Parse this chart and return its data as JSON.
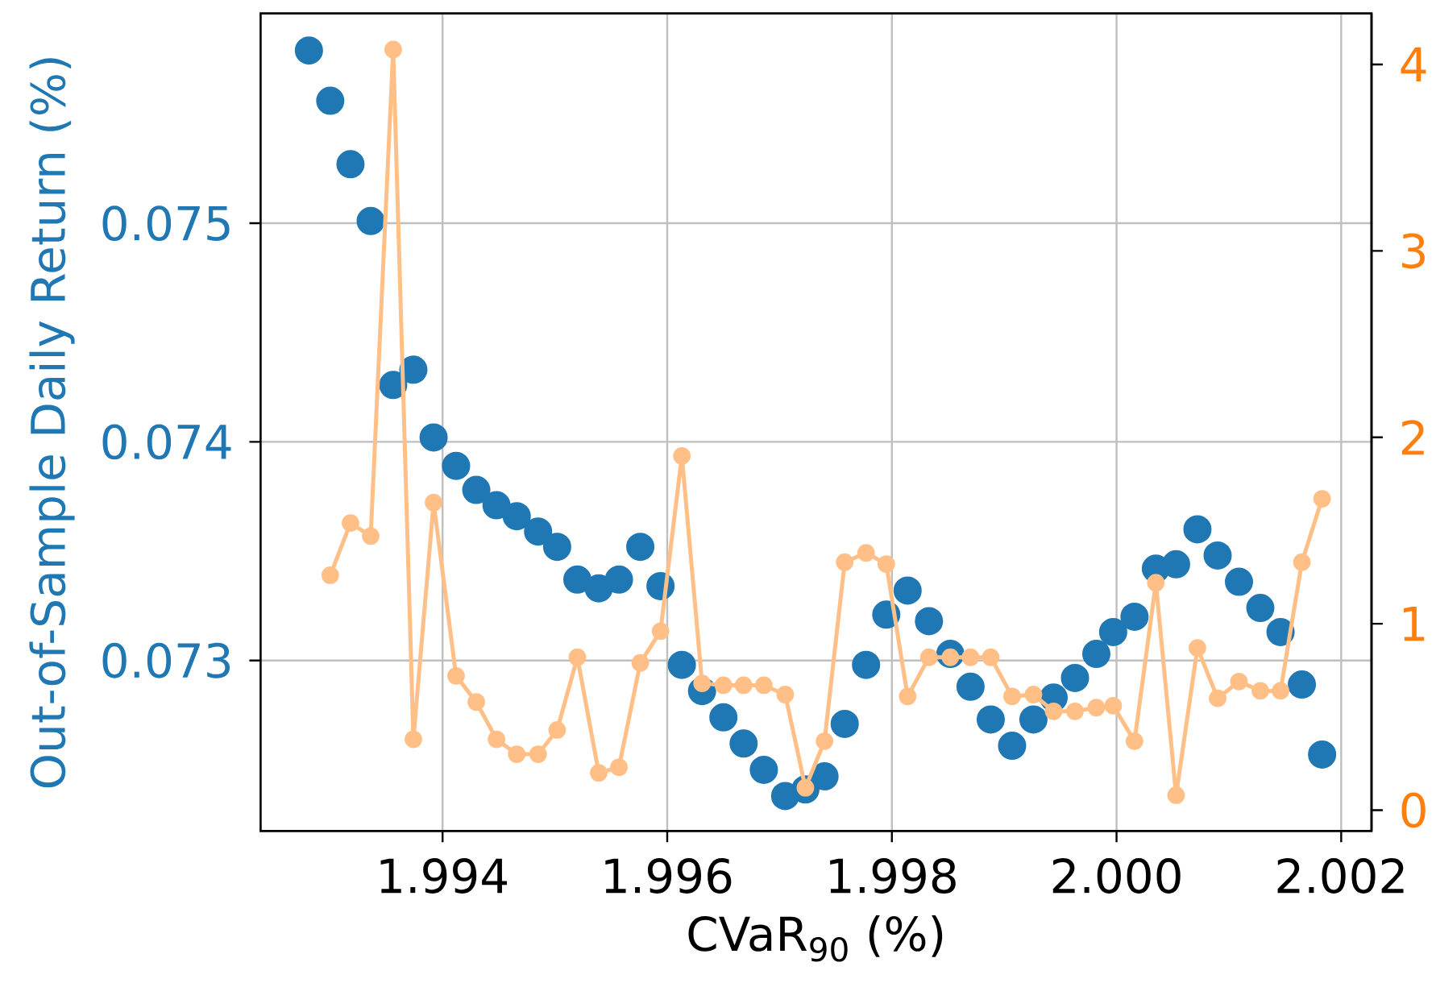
{
  "chart_data": {
    "type": "scatter",
    "xlabel": "CVaR$_{90}$ (%)",
    "ylabel": "Out-of-Sample Daily Return (%)",
    "xlim": [
      1.99238,
      2.00227
    ],
    "ylim": [
      0.07222,
      0.07596
    ],
    "y2lim": [
      -0.112,
      4.274
    ],
    "xticks": [
      1.994,
      1.996,
      1.998,
      {
        "value": 2.0,
        "label": "2.000"
      },
      2.002
    ],
    "yticks": [
      0.073,
      0.074,
      0.075
    ],
    "y2ticks": [
      0,
      1,
      2,
      3,
      4
    ],
    "grid": true,
    "marker": "circle",
    "series": [
      {
        "color": "#1f77b4",
        "x": [
          1.99281,
          1.993,
          1.99318,
          1.99336,
          1.99356,
          1.99374,
          1.99392,
          1.99412,
          1.9943,
          1.99448,
          1.99466,
          1.99485,
          1.99502,
          1.9952,
          1.99539,
          1.99557,
          1.99576,
          1.99594,
          1.99613,
          1.99631,
          1.9965,
          1.99668,
          1.99686,
          1.99705,
          1.99723,
          1.9974,
          1.99758,
          1.99777,
          1.99795,
          1.99814,
          1.99833,
          1.99852,
          1.9987,
          1.99888,
          1.99907,
          1.99926,
          1.99944,
          1.99963,
          1.99982,
          1.99997,
          2.00016,
          2.00035,
          2.00053,
          2.00072,
          2.0009,
          2.00109,
          2.00128,
          2.00146,
          2.00165,
          2.00183
        ],
        "values": [
          0.07579,
          0.07556,
          0.07527,
          0.07501,
          0.07426,
          0.07433,
          0.07402,
          0.07389,
          0.07378,
          0.07371,
          0.07366,
          0.07359,
          0.07352,
          0.07337,
          0.07333,
          0.07337,
          0.07352,
          0.07334,
          0.07298,
          0.07286,
          0.07274,
          0.07262,
          0.0725,
          0.07238,
          0.07241,
          0.07247,
          0.07271,
          0.07298,
          0.07321,
          0.07332,
          0.07318,
          0.07303,
          0.07288,
          0.07273,
          0.07261,
          0.07273,
          0.07283,
          0.07292,
          0.07303,
          0.07313,
          0.0732,
          0.07342,
          0.07344,
          0.0736,
          0.07348,
          0.07336,
          0.07324,
          0.07313,
          0.07289,
          0.07257
        ]
      },
      {
        "type": "line",
        "axis": "y2",
        "color": "#ffbf86",
        "x": [
          1.993,
          1.99318,
          1.99336,
          1.99356,
          1.99374,
          1.99392,
          1.99412,
          1.9943,
          1.99448,
          1.99466,
          1.99485,
          1.99502,
          1.9952,
          1.99539,
          1.99557,
          1.99576,
          1.99594,
          1.99613,
          1.99631,
          1.9965,
          1.99668,
          1.99686,
          1.99705,
          1.99723,
          1.9974,
          1.99758,
          1.99777,
          1.99795,
          1.99814,
          1.99833,
          1.99852,
          1.9987,
          1.99888,
          1.99907,
          1.99926,
          1.99944,
          1.99963,
          1.99982,
          1.99997,
          2.00016,
          2.00035,
          2.00053,
          2.00072,
          2.0009,
          2.00109,
          2.00128,
          2.00146,
          2.00165,
          2.00183
        ],
        "values": [
          1.26,
          1.54,
          1.47,
          4.08,
          0.38,
          1.65,
          0.72,
          0.58,
          0.38,
          0.3,
          0.3,
          0.43,
          0.82,
          0.2,
          0.23,
          0.79,
          0.96,
          1.9,
          0.68,
          0.67,
          0.67,
          0.67,
          0.62,
          0.12,
          0.37,
          1.33,
          1.38,
          1.32,
          0.61,
          0.82,
          0.82,
          0.82,
          0.82,
          0.61,
          0.62,
          0.53,
          0.53,
          0.55,
          0.56,
          0.37,
          1.22,
          0.08,
          0.87,
          0.6,
          0.69,
          0.64,
          0.64,
          1.33,
          1.67
        ]
      }
    ]
  }
}
